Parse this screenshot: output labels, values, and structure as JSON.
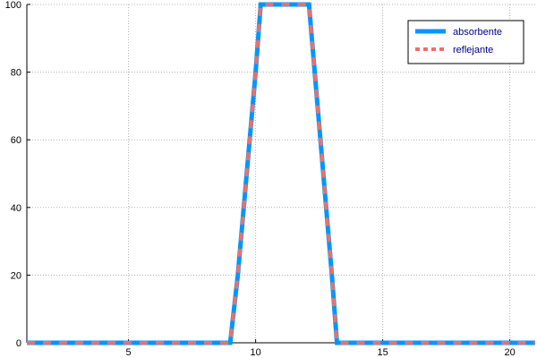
{
  "chart_data": {
    "type": "line",
    "title": "",
    "xlabel": "",
    "ylabel": "",
    "xlim": [
      1,
      21
    ],
    "ylim": [
      0,
      100
    ],
    "x_ticks": [
      5,
      10,
      15,
      20
    ],
    "y_ticks": [
      0,
      20,
      40,
      60,
      80,
      100
    ],
    "grid": true,
    "legend_position": "top-right",
    "series": [
      {
        "name": "absorbente",
        "color": "#0096ff",
        "style": "solid",
        "x": [
          1,
          9,
          9.3,
          10,
          10.2,
          12.1,
          13,
          13.2,
          21
        ],
        "y": [
          0,
          0,
          20,
          80,
          100,
          100,
          20,
          0,
          0
        ]
      },
      {
        "name": "reflejante",
        "color": "#e8726b",
        "style": "dotted",
        "x": [
          1,
          9,
          9.3,
          10,
          10.2,
          12.1,
          13,
          13.2,
          21
        ],
        "y": [
          0,
          0,
          20,
          80,
          100,
          100,
          20,
          0,
          0
        ]
      }
    ]
  }
}
